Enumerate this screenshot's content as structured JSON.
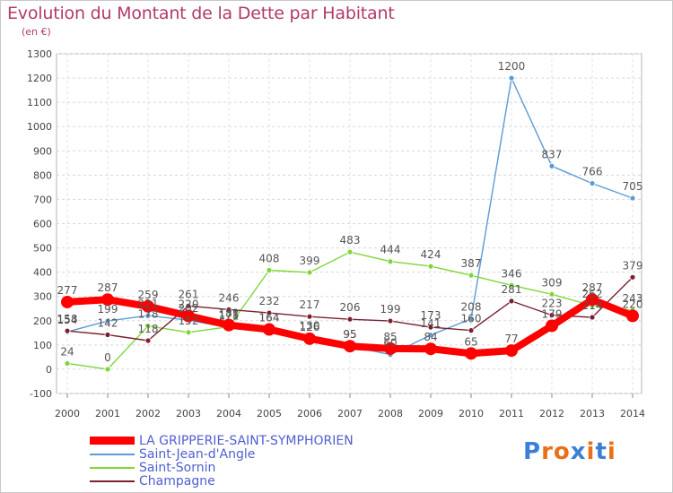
{
  "header": {
    "title": "Evolution du Montant de la Dette par Habitant",
    "subtitle": "(en €)"
  },
  "logo": {
    "text": "Proxiti",
    "colors": [
      "#3b7fd6",
      "#e8701a",
      "#e8701a",
      "#3b7fd6",
      "#e8701a",
      "#3b7fd6",
      "#e8701a"
    ]
  },
  "chart_data": {
    "type": "line",
    "title": "Evolution du Montant de la Dette par Habitant",
    "subtitle": "(en €)",
    "x": [
      "2000",
      "2001",
      "2002",
      "2003",
      "2004",
      "2005",
      "2006",
      "2007",
      "2008",
      "2009",
      "2010",
      "2011",
      "2012",
      "2013",
      "2014"
    ],
    "ylim": [
      -100,
      1300
    ],
    "yticks": [
      -100,
      0,
      100,
      200,
      300,
      400,
      500,
      600,
      700,
      800,
      900,
      1000,
      1100,
      1200,
      1300
    ],
    "grid": true,
    "legend_position": "bottom-left",
    "series": [
      {
        "name": "LA GRIPPERIE-SAINT-SYMPHORIEN",
        "color": "#ff0000",
        "values": [
          277,
          287,
          259,
          220,
          182,
          164,
          126,
          95,
          85,
          84,
          65,
          77,
          179,
          287,
          220
        ],
        "labels": [
          "277",
          "287",
          "259",
          "220",
          "182",
          "164",
          "126",
          "95",
          "85",
          "84",
          "65",
          "77",
          "179",
          "287",
          "220"
        ]
      },
      {
        "name": "Saint-Jean-d'Angle",
        "color": "#5b9bd5",
        "values": [
          154,
          199,
          221,
          202,
          171,
          164,
          130,
          95,
          60,
          141,
          208,
          1200,
          837,
          766,
          705
        ],
        "labels": [
          "154",
          "199",
          "221",
          "202",
          "171",
          "164",
          "130",
          "95",
          "60",
          "141",
          "208",
          "1200",
          "837",
          "766",
          "705"
        ]
      },
      {
        "name": "Saint-Sornin",
        "color": "#7dd63a",
        "values": [
          24,
          0,
          178,
          152,
          175,
          408,
          399,
          483,
          444,
          424,
          387,
          346,
          309,
          262,
          243
        ],
        "labels": [
          "24",
          "0",
          "178",
          "152",
          "175",
          "408",
          "399",
          "483",
          "444",
          "424",
          "387",
          "346",
          "309",
          "262",
          "243"
        ]
      },
      {
        "name": "Champagne",
        "color": "#7a2030",
        "values": [
          158,
          142,
          118,
          261,
          246,
          232,
          217,
          206,
          199,
          173,
          160,
          281,
          223,
          214,
          379
        ],
        "labels": [
          "158",
          "142",
          "118",
          "261",
          "246",
          "232",
          "217",
          "206",
          "199",
          "173",
          "160",
          "281",
          "223",
          "214",
          "379"
        ]
      }
    ]
  }
}
